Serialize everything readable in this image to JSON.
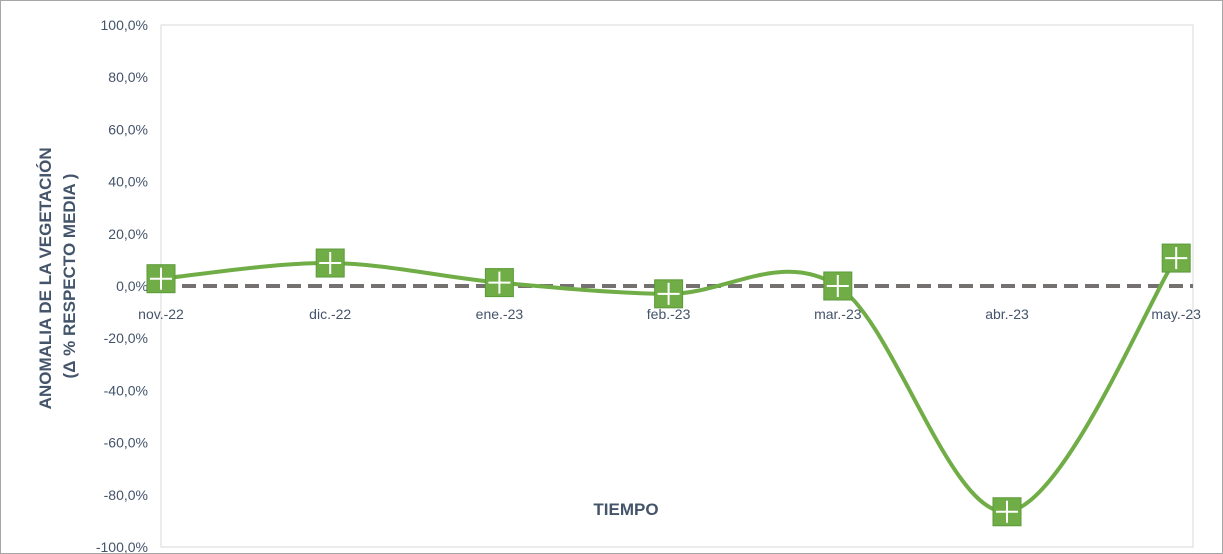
{
  "chart_data": {
    "type": "line",
    "categories": [
      "nov.-22",
      "dic.-22",
      "ene.-23",
      "feb.-23",
      "mar.-23",
      "abr.-23",
      "may.-23"
    ],
    "series": [
      {
        "values": [
          2.8,
          8.8,
          1.3,
          -3.0,
          0.0,
          -86.5,
          10.7
        ],
        "color": "#70ad47",
        "marker": "square-plus",
        "smooth": true
      }
    ],
    "reference_line": {
      "y": 0.0,
      "color": "#767171",
      "style": "dashed"
    },
    "xlabel": "TIEMPO",
    "ylabel_lines": [
      "ANOMALIA DE LA VEGETACIÓN",
      "(Δ % RESPECTO MEDIA )"
    ],
    "ylim": [
      -100,
      100
    ],
    "yticks": [
      "100,0%",
      "80,0%",
      "60,0%",
      "40,0%",
      "20,0%",
      "0,0%",
      "-20,0%",
      "-40,0%",
      "-60,0%",
      "-80,0%",
      "-100,0%"
    ],
    "grid": false,
    "legend": "none"
  }
}
